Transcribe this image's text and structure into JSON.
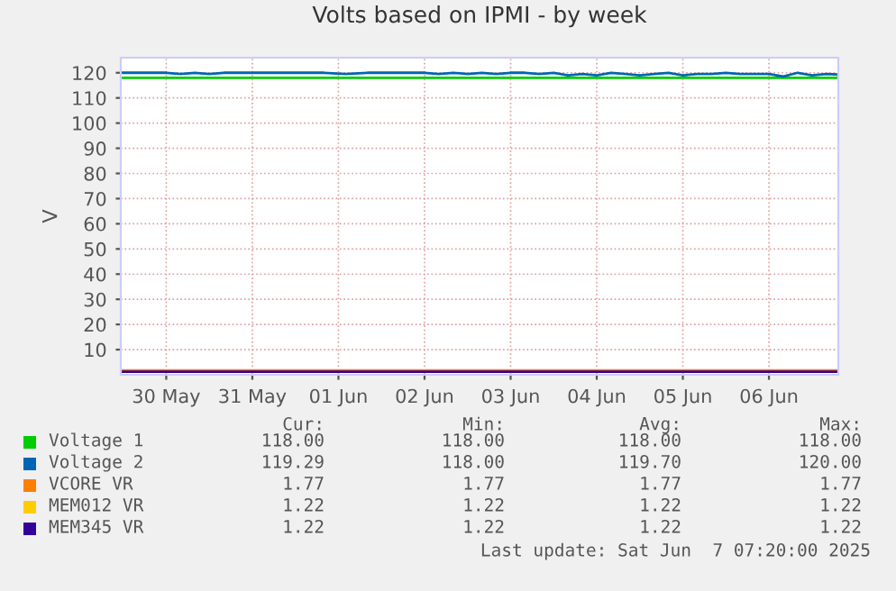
{
  "chart_data": {
    "type": "line",
    "title": "Volts based on IPMI - by week",
    "ylabel": "V",
    "xlim": [
      "2025-05-29T23:20",
      "2025-06-07T07:20"
    ],
    "ylim": [
      0,
      126
    ],
    "xticks": [
      {
        "value": "2025-05-30T12:00",
        "label": "30 May"
      },
      {
        "value": "2025-05-31T12:00",
        "label": "31 May"
      },
      {
        "value": "2025-06-01T12:00",
        "label": "01 Jun"
      },
      {
        "value": "2025-06-02T12:00",
        "label": "02 Jun"
      },
      {
        "value": "2025-06-03T12:00",
        "label": "03 Jun"
      },
      {
        "value": "2025-06-04T12:00",
        "label": "04 Jun"
      },
      {
        "value": "2025-06-05T12:00",
        "label": "05 Jun"
      },
      {
        "value": "2025-06-06T12:00",
        "label": "06 Jun"
      }
    ],
    "yticks": [
      10,
      20,
      30,
      40,
      50,
      60,
      70,
      80,
      90,
      100,
      110,
      120
    ],
    "grid": true,
    "legend": "bottom",
    "x": [
      "2025-05-29T23:20",
      "2025-06-07T07:20"
    ],
    "series": [
      {
        "name": "Voltage 1",
        "color": "#00cc00",
        "values": [
          118,
          118
        ]
      },
      {
        "name": "Voltage 2",
        "color": "#0066b3",
        "x": [
          "2025-05-29T23:20",
          "2025-05-30T12:00",
          "2025-05-30T16:00",
          "2025-05-30T20:00",
          "2025-05-31T00:00",
          "2025-05-31T04:00",
          "2025-05-31T12:00",
          "2025-06-01T00:00",
          "2025-06-01T08:00",
          "2025-06-01T14:00",
          "2025-06-01T20:00",
          "2025-06-02T04:00",
          "2025-06-02T12:00",
          "2025-06-02T16:00",
          "2025-06-02T20:00",
          "2025-06-03T00:00",
          "2025-06-03T04:00",
          "2025-06-03T08:00",
          "2025-06-03T12:00",
          "2025-06-03T16:00",
          "2025-06-03T20:00",
          "2025-06-04T00:00",
          "2025-06-04T04:00",
          "2025-06-04T08:00",
          "2025-06-04T12:00",
          "2025-06-04T16:00",
          "2025-06-04T20:00",
          "2025-06-05T00:00",
          "2025-06-05T04:00",
          "2025-06-05T08:00",
          "2025-06-05T12:00",
          "2025-06-05T16:00",
          "2025-06-05T20:00",
          "2025-06-06T00:00",
          "2025-06-06T04:00",
          "2025-06-06T08:00",
          "2025-06-06T12:00",
          "2025-06-06T16:00",
          "2025-06-06T20:00",
          "2025-06-07T00:00",
          "2025-06-07T04:00",
          "2025-06-07T07:20"
        ],
        "values": [
          120,
          120,
          119.5,
          120,
          119.5,
          120,
          120,
          120,
          120,
          119.5,
          120,
          120,
          120,
          119.5,
          120,
          119.5,
          120,
          119.5,
          120,
          120,
          119.5,
          120,
          119,
          119.5,
          119,
          120,
          119.5,
          119,
          119.5,
          120,
          119,
          119.5,
          119.5,
          120,
          119.5,
          119.5,
          119.5,
          118.5,
          120,
          119,
          119.5,
          119.29
        ]
      },
      {
        "name": "VCORE VR",
        "color": "#ff8000",
        "values": [
          1.77,
          1.77
        ]
      },
      {
        "name": "MEM012 VR",
        "color": "#ffcc00",
        "values": [
          null,
          null
        ]
      },
      {
        "name": "MEM345 VR",
        "color": "#330099",
        "values": [
          1.22,
          1.22
        ]
      }
    ],
    "annotations": [
      "Cur:",
      "Min:",
      "Avg:",
      "Max:",
      "118.00",
      "118.00",
      "118.00",
      "118.00",
      "119.29",
      "118.00",
      "119.70",
      "120.00",
      "1.77",
      "1.77",
      "1.77",
      "1.77",
      "1.22",
      "1.22",
      "1.22",
      "1.22",
      "1.22",
      "1.22",
      "1.22",
      "1.22",
      "Last update: Sat Jun  7 07:20:00 2025"
    ]
  }
}
